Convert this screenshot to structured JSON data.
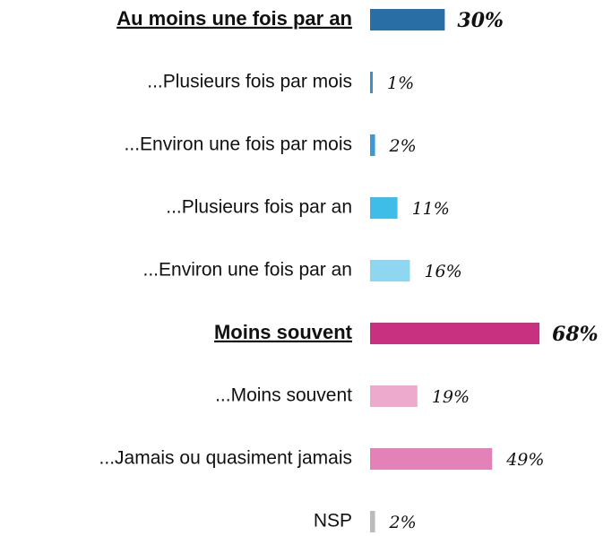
{
  "chart_data": {
    "type": "bar",
    "categories": [
      "Au moins une fois par an",
      "...Plusieurs fois par mois",
      "...Environ une fois par mois",
      "...Plusieurs fois par an",
      "...Environ une fois par an",
      "Moins souvent",
      "...Moins souvent",
      "...Jamais ou quasiment jamais",
      "NSP"
    ],
    "values": [
      30,
      1,
      2,
      11,
      16,
      68,
      19,
      49,
      2
    ],
    "value_labels": [
      "30%",
      "1%",
      "2%",
      "11%",
      "16%",
      "68%",
      "19%",
      "49%",
      "2%"
    ],
    "colors": [
      "#2a6ea6",
      "#3b8fd0",
      "#3b9ad6",
      "#3dbde8",
      "#8fd6f0",
      "#c8317f",
      "#eeaacd",
      "#e282b6",
      "#bbbbbb"
    ]
  }
}
